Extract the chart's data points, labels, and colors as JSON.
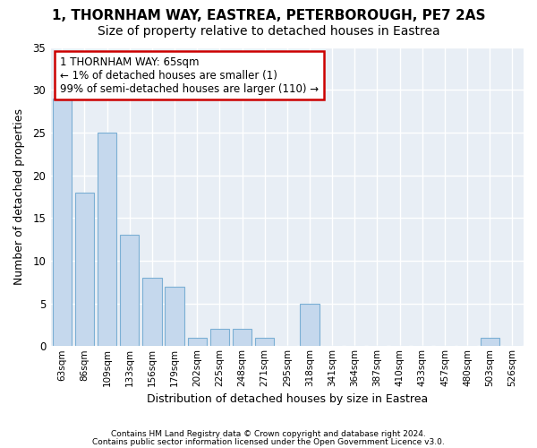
{
  "title1": "1, THORNHAM WAY, EASTREA, PETERBOROUGH, PE7 2AS",
  "title2": "Size of property relative to detached houses in Eastrea",
  "xlabel": "Distribution of detached houses by size in Eastrea",
  "ylabel": "Number of detached properties",
  "categories": [
    "63sqm",
    "86sqm",
    "109sqm",
    "133sqm",
    "156sqm",
    "179sqm",
    "202sqm",
    "225sqm",
    "248sqm",
    "271sqm",
    "295sqm",
    "318sqm",
    "341sqm",
    "364sqm",
    "387sqm",
    "410sqm",
    "433sqm",
    "457sqm",
    "480sqm",
    "503sqm",
    "526sqm"
  ],
  "values": [
    29,
    18,
    25,
    13,
    8,
    7,
    1,
    2,
    2,
    1,
    0,
    5,
    0,
    0,
    0,
    0,
    0,
    0,
    0,
    1,
    0
  ],
  "bar_color": "#c5d8ed",
  "bar_edge_color": "#7bafd4",
  "ylim": [
    0,
    35
  ],
  "yticks": [
    0,
    5,
    10,
    15,
    20,
    25,
    30,
    35
  ],
  "annotation_line1": "1 THORNHAM WAY: 65sqm",
  "annotation_line2": "← 1% of detached houses are smaller (1)",
  "annotation_line3": "99% of semi-detached houses are larger (110) →",
  "annotation_box_color": "#ffffff",
  "annotation_box_edge": "#cc0000",
  "footer1": "Contains HM Land Registry data © Crown copyright and database right 2024.",
  "footer2": "Contains public sector information licensed under the Open Government Licence v3.0.",
  "bg_color": "#ffffff",
  "plot_bg_color": "#e8eef5",
  "grid_color": "#ffffff",
  "title1_fontsize": 11,
  "title2_fontsize": 10
}
